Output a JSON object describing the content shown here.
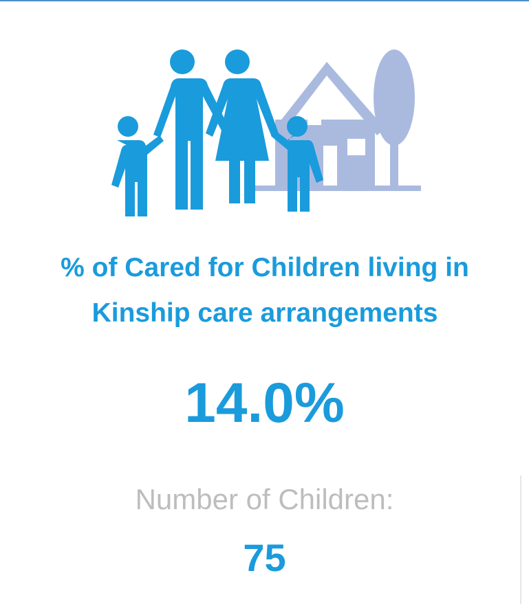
{
  "card": {
    "title": "% of Cared for Children living in Kinship care arrangements",
    "value": "14.0%",
    "count_label": "Number of Children:",
    "count": 75
  }
}
